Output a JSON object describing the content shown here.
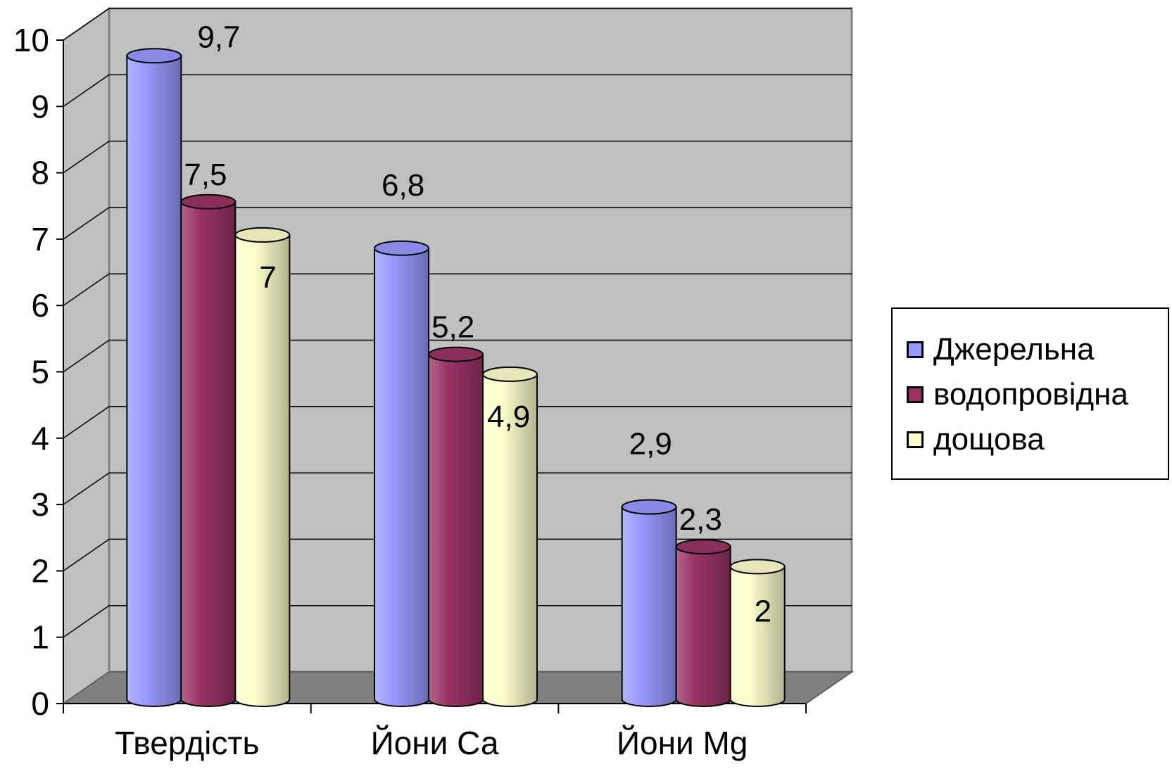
{
  "chart_data": {
    "type": "bar",
    "categories": [
      "Твердість",
      "Йони Са",
      "Йони Mg"
    ],
    "series": [
      {
        "name": "Джерельна",
        "values": [
          9.7,
          6.8,
          2.9
        ],
        "labels": [
          "9,7",
          "6,8",
          "2,9"
        ],
        "color": "#9999FF"
      },
      {
        "name": "водопровідна",
        "values": [
          7.5,
          5.2,
          2.3
        ],
        "labels": [
          "7,5",
          "5,2",
          "2,3"
        ],
        "color": "#993366"
      },
      {
        "name": "дощова",
        "values": [
          7,
          4.9,
          2
        ],
        "labels": [
          "7",
          "4,9",
          "2"
        ],
        "color": "#FFFFCC"
      }
    ],
    "yticks": [
      "0",
      "1",
      "2",
      "3",
      "4",
      "5",
      "6",
      "7",
      "8",
      "9",
      "10"
    ],
    "ylim": [
      0,
      10
    ],
    "grid": true,
    "legend_position": "right",
    "wall_color": "#C0C0C0",
    "floor_color": "#808080"
  }
}
